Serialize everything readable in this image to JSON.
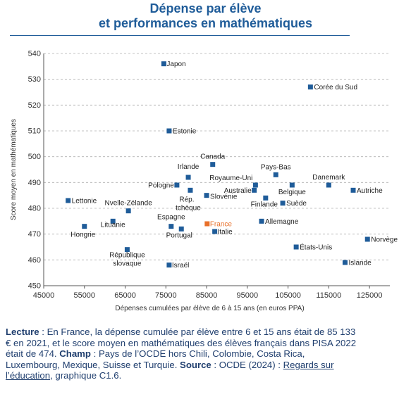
{
  "title_line1": "Dépense par élève",
  "title_line2": "et performances en mathématiques",
  "caption": {
    "lecture_label": "Lecture",
    "lecture_text": " : En France, la dépense cumulée par élève entre 6 et 15 ans était de 85 133 € en 2021, et le score moyen en mathématiques des élèves français dans PISA 2022 était de 474. ",
    "champ_label": "Champ",
    "champ_text": " : Pays de l’OCDE hors Chili, Colombie, Costa Rica, Luxembourg, Mexique, Suisse et Turquie. ",
    "source_label": "Source",
    "source_text": " : OCDE (2024) : ",
    "source_link": "Regards sur l’éducation",
    "source_end": ", graphique C1.6."
  },
  "chart_data": {
    "type": "scatter",
    "xlabel": "Dépenses cumulées par élève de 6 à 15 ans (en euros PPA)",
    "ylabel": "Score moyen en mathématiques",
    "xlim": [
      45000,
      130000
    ],
    "ylim": [
      450,
      540
    ],
    "xticks": [
      45000,
      55000,
      65000,
      75000,
      85000,
      95000,
      105000,
      115000,
      125000
    ],
    "xtick_labels": [
      "45000",
      "55000",
      "65000",
      "75000",
      "85000",
      "95000",
      "105000",
      "115000",
      "125000"
    ],
    "yticks": [
      450,
      460,
      470,
      480,
      490,
      500,
      510,
      520,
      530,
      540
    ],
    "ytick_labels": [
      "450",
      "460",
      "470",
      "480",
      "490",
      "500",
      "510",
      "520",
      "530",
      "540"
    ],
    "grid": "horizontal dashed",
    "colors": {
      "default": "#1f5c99",
      "highlight": "#e8702a",
      "grid": "#b0b0b0",
      "axis": "#555555"
    },
    "points": [
      {
        "label": "Japon",
        "x": 74500,
        "y": 536
      },
      {
        "label": "Corée du Sud",
        "x": 110500,
        "y": 527
      },
      {
        "label": "Estonie",
        "x": 75800,
        "y": 510
      },
      {
        "label": "Canada",
        "x": 86500,
        "y": 497
      },
      {
        "label": "Irlande",
        "x": 80500,
        "y": 492
      },
      {
        "label": "Pologne",
        "x": 77700,
        "y": 489
      },
      {
        "label": "Rép. tchèque",
        "x": 81000,
        "y": 487
      },
      {
        "label": "Slovénie",
        "x": 85000,
        "y": 485
      },
      {
        "label": "Pays-Bas",
        "x": 102000,
        "y": 493
      },
      {
        "label": "Royaume-Uni",
        "x": 97000,
        "y": 489
      },
      {
        "label": "Australie",
        "x": 96700,
        "y": 487
      },
      {
        "label": "Finlande",
        "x": 99500,
        "y": 484
      },
      {
        "label": "Belgique",
        "x": 106000,
        "y": 489
      },
      {
        "label": "Suède",
        "x": 103700,
        "y": 482
      },
      {
        "label": "Danemark",
        "x": 115000,
        "y": 489
      },
      {
        "label": "Autriche",
        "x": 121000,
        "y": 487
      },
      {
        "label": "Lettonie",
        "x": 51000,
        "y": 483
      },
      {
        "label": "Nvelle-Zélande",
        "x": 65800,
        "y": 479
      },
      {
        "label": "Hongrie",
        "x": 55000,
        "y": 473
      },
      {
        "label": "Lituanie",
        "x": 62000,
        "y": 475
      },
      {
        "label": "Espagne",
        "x": 76300,
        "y": 473
      },
      {
        "label": "Portugal",
        "x": 78800,
        "y": 472
      },
      {
        "label": "France",
        "x": 85133,
        "y": 474,
        "highlight": true
      },
      {
        "label": "Italie",
        "x": 87000,
        "y": 471
      },
      {
        "label": "Allemagne",
        "x": 98500,
        "y": 475
      },
      {
        "label": "États-Unis",
        "x": 107000,
        "y": 465
      },
      {
        "label": "Norvège",
        "x": 124500,
        "y": 468
      },
      {
        "label": "Islande",
        "x": 119000,
        "y": 459
      },
      {
        "label": "République slovaque",
        "x": 65500,
        "y": 464
      },
      {
        "label": "Israël",
        "x": 75800,
        "y": 458
      }
    ]
  }
}
